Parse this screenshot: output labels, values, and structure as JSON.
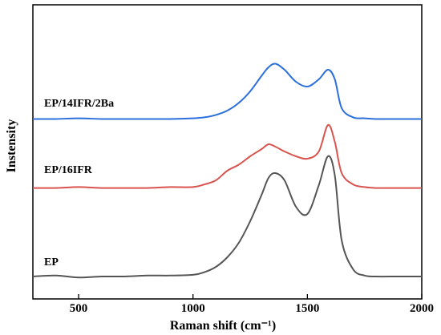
{
  "chart_data": {
    "type": "line",
    "title": "",
    "xlabel": "Raman shift (cm⁻¹)",
    "ylabel": "Instensity",
    "xlim": [
      300,
      2000
    ],
    "xticks": [
      500,
      1000,
      1500,
      2000
    ],
    "xtick_labels": [
      "500",
      "1000",
      "1500",
      "2000"
    ],
    "ylim": [
      0,
      1
    ],
    "yticks": [],
    "grid": false,
    "legend": "none",
    "x": [
      300,
      400,
      500,
      600,
      700,
      800,
      900,
      1000,
      1050,
      1100,
      1150,
      1200,
      1250,
      1300,
      1330,
      1360,
      1400,
      1450,
      1500,
      1550,
      1590,
      1620,
      1650,
      1700,
      1750,
      1800,
      1900,
      2000
    ],
    "series": [
      {
        "name": "EP",
        "color": "#555555",
        "values": [
          0.0,
          0.004,
          -0.004,
          0.0,
          0.0,
          0.004,
          0.004,
          0.007,
          0.018,
          0.04,
          0.08,
          0.14,
          0.23,
          0.34,
          0.41,
          0.43,
          0.4,
          0.29,
          0.26,
          0.38,
          0.5,
          0.42,
          0.15,
          0.03,
          0.004,
          0.0,
          0.0,
          0.0
        ]
      },
      {
        "name": "EP/16IFR",
        "color": "#d9534f",
        "values": [
          0.368,
          0.368,
          0.372,
          0.368,
          0.368,
          0.368,
          0.372,
          0.372,
          0.383,
          0.4,
          0.44,
          0.465,
          0.5,
          0.53,
          0.55,
          0.54,
          0.52,
          0.5,
          0.49,
          0.52,
          0.63,
          0.56,
          0.43,
          0.383,
          0.372,
          0.368,
          0.368,
          0.368
        ]
      },
      {
        "name": "EP/14IFR/2Ba",
        "color": "#2a6fdb",
        "values": [
          0.655,
          0.655,
          0.658,
          0.655,
          0.655,
          0.655,
          0.655,
          0.658,
          0.662,
          0.672,
          0.69,
          0.722,
          0.77,
          0.835,
          0.87,
          0.885,
          0.86,
          0.81,
          0.79,
          0.82,
          0.86,
          0.82,
          0.7,
          0.662,
          0.658,
          0.655,
          0.655,
          0.655
        ]
      }
    ]
  }
}
